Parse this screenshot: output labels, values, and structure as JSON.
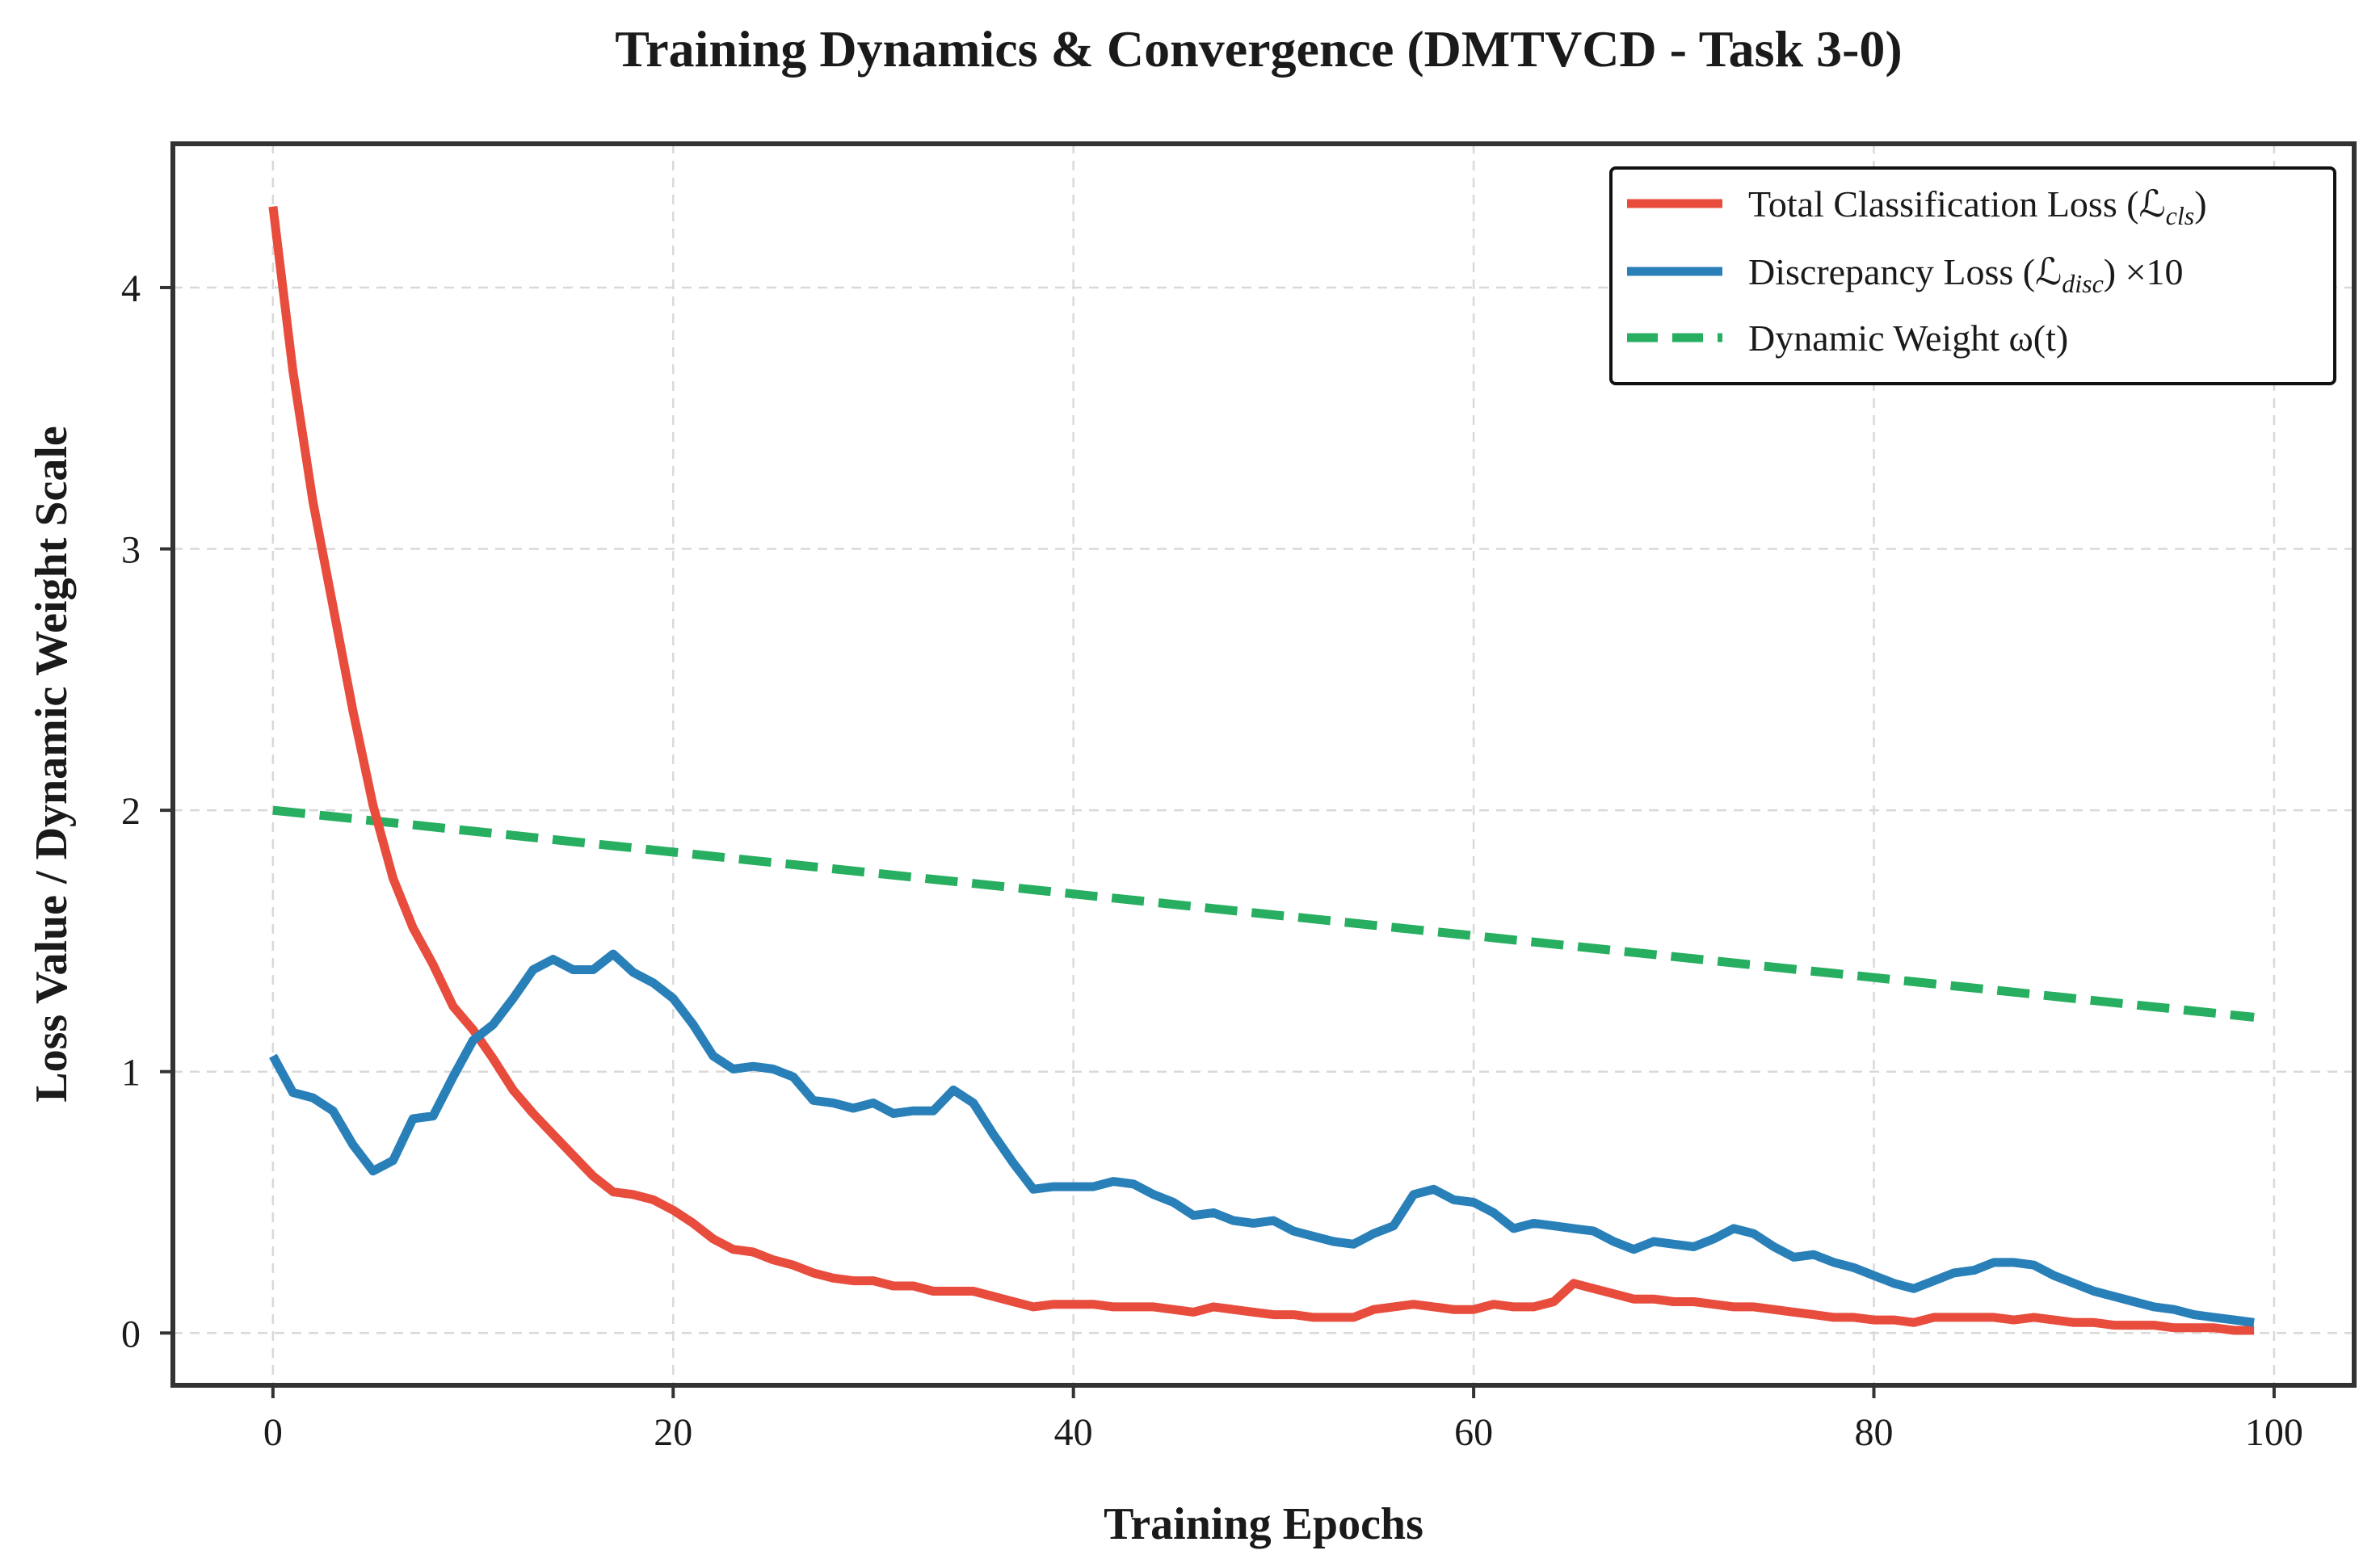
{
  "chart_data": {
    "type": "line",
    "title": "Training Dynamics & Convergence (DMTVCD - Task 3-0)",
    "xlabel": "Training Epochs",
    "ylabel": "Loss Value / Dynamic Weight Scale",
    "xlim": [
      -5,
      104
    ],
    "ylim": [
      -0.2,
      4.55
    ],
    "xticks": [
      0,
      20,
      40,
      60,
      80,
      100
    ],
    "yticks": [
      0,
      1,
      2,
      3,
      4
    ],
    "grid": true,
    "legend_position": "top-right",
    "x": [
      0,
      1,
      2,
      3,
      4,
      5,
      6,
      7,
      8,
      9,
      10,
      11,
      12,
      13,
      14,
      15,
      16,
      17,
      18,
      19,
      20,
      21,
      22,
      23,
      24,
      25,
      26,
      27,
      28,
      29,
      30,
      31,
      32,
      33,
      34,
      35,
      36,
      37,
      38,
      39,
      40,
      41,
      42,
      43,
      44,
      45,
      46,
      47,
      48,
      49,
      50,
      51,
      52,
      53,
      54,
      55,
      56,
      57,
      58,
      59,
      60,
      61,
      62,
      63,
      64,
      65,
      66,
      67,
      68,
      69,
      70,
      71,
      72,
      73,
      74,
      75,
      76,
      77,
      78,
      79,
      80,
      81,
      82,
      83,
      84,
      85,
      86,
      87,
      88,
      89,
      90,
      91,
      92,
      93,
      94,
      95,
      96,
      97,
      98,
      99
    ],
    "series": [
      {
        "name": "Total Classification Loss",
        "legend_label": "Total Classification Loss (ℒ",
        "legend_sub": "cls",
        "legend_suffix": ")",
        "color": "#e74c3c",
        "style": "solid",
        "values": [
          4.31,
          3.68,
          3.18,
          2.78,
          2.38,
          2.02,
          1.74,
          1.55,
          1.41,
          1.25,
          1.16,
          1.05,
          0.93,
          0.84,
          0.76,
          0.68,
          0.6,
          0.54,
          0.53,
          0.51,
          0.47,
          0.42,
          0.36,
          0.32,
          0.31,
          0.28,
          0.26,
          0.23,
          0.21,
          0.2,
          0.2,
          0.18,
          0.18,
          0.16,
          0.16,
          0.16,
          0.14,
          0.12,
          0.1,
          0.11,
          0.11,
          0.11,
          0.1,
          0.1,
          0.1,
          0.09,
          0.08,
          0.1,
          0.09,
          0.08,
          0.07,
          0.07,
          0.06,
          0.06,
          0.06,
          0.09,
          0.1,
          0.11,
          0.1,
          0.09,
          0.09,
          0.11,
          0.1,
          0.1,
          0.12,
          0.19,
          0.17,
          0.15,
          0.13,
          0.13,
          0.12,
          0.12,
          0.11,
          0.1,
          0.1,
          0.09,
          0.08,
          0.07,
          0.06,
          0.06,
          0.05,
          0.05,
          0.04,
          0.06,
          0.06,
          0.06,
          0.06,
          0.05,
          0.06,
          0.05,
          0.04,
          0.04,
          0.03,
          0.03,
          0.03,
          0.02,
          0.02,
          0.02,
          0.01,
          0.01
        ]
      },
      {
        "name": "Discrepancy Loss x10",
        "legend_label": "Discrepancy Loss (ℒ",
        "legend_sub": "disc",
        "legend_suffix": ") ×10",
        "color": "#2980b9",
        "style": "solid",
        "values": [
          1.06,
          0.92,
          0.9,
          0.85,
          0.72,
          0.62,
          0.66,
          0.82,
          0.83,
          0.98,
          1.12,
          1.18,
          1.28,
          1.39,
          1.43,
          1.39,
          1.39,
          1.45,
          1.38,
          1.34,
          1.28,
          1.18,
          1.06,
          1.01,
          1.02,
          1.01,
          0.98,
          0.89,
          0.88,
          0.86,
          0.88,
          0.84,
          0.85,
          0.85,
          0.93,
          0.88,
          0.76,
          0.65,
          0.55,
          0.56,
          0.56,
          0.56,
          0.58,
          0.57,
          0.53,
          0.5,
          0.45,
          0.46,
          0.43,
          0.42,
          0.43,
          0.39,
          0.37,
          0.35,
          0.34,
          0.38,
          0.41,
          0.53,
          0.55,
          0.51,
          0.5,
          0.46,
          0.4,
          0.42,
          0.41,
          0.4,
          0.39,
          0.35,
          0.32,
          0.35,
          0.34,
          0.33,
          0.36,
          0.4,
          0.38,
          0.33,
          0.29,
          0.3,
          0.27,
          0.25,
          0.22,
          0.19,
          0.17,
          0.2,
          0.23,
          0.24,
          0.27,
          0.27,
          0.26,
          0.22,
          0.19,
          0.16,
          0.14,
          0.12,
          0.1,
          0.09,
          0.07,
          0.06,
          0.05,
          0.04
        ]
      },
      {
        "name": "Dynamic Weight",
        "legend_label": "Dynamic Weight ",
        "legend_sub": "",
        "legend_suffix": "ω(t)",
        "color": "#27ae60",
        "style": "dashed",
        "values": [
          2.0,
          1.992,
          1.984,
          1.976,
          1.968,
          1.96,
          1.952,
          1.944,
          1.936,
          1.928,
          1.92,
          1.912,
          1.904,
          1.896,
          1.888,
          1.88,
          1.872,
          1.864,
          1.856,
          1.848,
          1.84,
          1.832,
          1.824,
          1.816,
          1.808,
          1.8,
          1.792,
          1.784,
          1.776,
          1.768,
          1.76,
          1.752,
          1.744,
          1.736,
          1.728,
          1.72,
          1.712,
          1.704,
          1.696,
          1.688,
          1.68,
          1.672,
          1.664,
          1.656,
          1.648,
          1.64,
          1.632,
          1.624,
          1.616,
          1.608,
          1.6,
          1.592,
          1.584,
          1.576,
          1.568,
          1.56,
          1.552,
          1.544,
          1.536,
          1.528,
          1.52,
          1.512,
          1.504,
          1.496,
          1.488,
          1.48,
          1.472,
          1.464,
          1.456,
          1.448,
          1.44,
          1.432,
          1.424,
          1.416,
          1.408,
          1.4,
          1.392,
          1.384,
          1.376,
          1.368,
          1.36,
          1.352,
          1.344,
          1.336,
          1.328,
          1.32,
          1.312,
          1.304,
          1.296,
          1.288,
          1.28,
          1.272,
          1.264,
          1.256,
          1.248,
          1.24,
          1.232,
          1.224,
          1.216,
          1.208
        ]
      }
    ]
  }
}
